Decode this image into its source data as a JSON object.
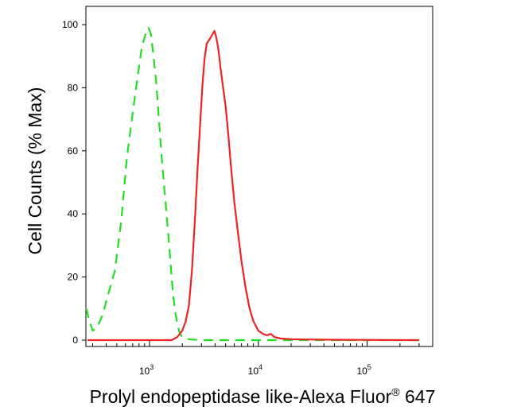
{
  "chart_data": {
    "type": "line",
    "title": "",
    "xlabel": "Prolyl endopeptidase like-Alexa Fluor",
    "xlabel_superscript": "®",
    "xlabel_suffix": " 647",
    "ylabel": "Cell Counts (% Max)",
    "xscale": "log",
    "xlim": [
      260,
      400000
    ],
    "ylim": [
      0,
      100
    ],
    "x_ticks": [
      {
        "value": 1000,
        "base": "10",
        "exp": "3"
      },
      {
        "value": 10000,
        "base": "10",
        "exp": "4"
      },
      {
        "value": 100000,
        "base": "10",
        "exp": "5"
      }
    ],
    "y_ticks": [
      0,
      20,
      40,
      60,
      80,
      100
    ],
    "grid": false,
    "legend": "none",
    "series": [
      {
        "color": "#22dd22",
        "style": "dashed",
        "x": [
          262,
          280,
          300,
          330,
          370,
          420,
          480,
          550,
          620,
          700,
          780,
          850,
          920,
          980,
          1030,
          1080,
          1150,
          1220,
          1300,
          1400,
          1500,
          1580,
          1650,
          1720,
          1800,
          1900,
          2000,
          2100,
          2400,
          3000,
          5000,
          10000,
          300000
        ],
        "y": [
          10,
          6,
          3,
          4,
          8,
          15,
          22,
          38,
          58,
          72,
          84,
          93,
          97,
          99,
          97,
          91,
          82,
          70,
          57,
          44,
          32,
          22,
          14,
          9,
          5,
          2,
          1,
          0.5,
          0.2,
          0,
          0,
          0,
          0
        ]
      },
      {
        "color": "#ee2222",
        "style": "solid",
        "x": [
          270,
          1000,
          1600,
          1800,
          2000,
          2150,
          2300,
          2450,
          2600,
          2750,
          2900,
          3050,
          3200,
          3350,
          3500,
          3650,
          3800,
          3950,
          4100,
          4300,
          4500,
          4700,
          5000,
          5300,
          5600,
          6000,
          6500,
          7000,
          7600,
          8300,
          9000,
          10000,
          11000,
          12000,
          13000,
          14000,
          16000,
          20000,
          30000,
          60000,
          300000
        ],
        "y": [
          0,
          0,
          0,
          1,
          3,
          6,
          11,
          22,
          37,
          53,
          67,
          80,
          89,
          94,
          95,
          96,
          97,
          98,
          96,
          92,
          86,
          81,
          74,
          65,
          55,
          44,
          34,
          25,
          17,
          10,
          6,
          3,
          2,
          1.5,
          2,
          1,
          0.5,
          0.3,
          0.2,
          0.1,
          0
        ]
      }
    ]
  }
}
